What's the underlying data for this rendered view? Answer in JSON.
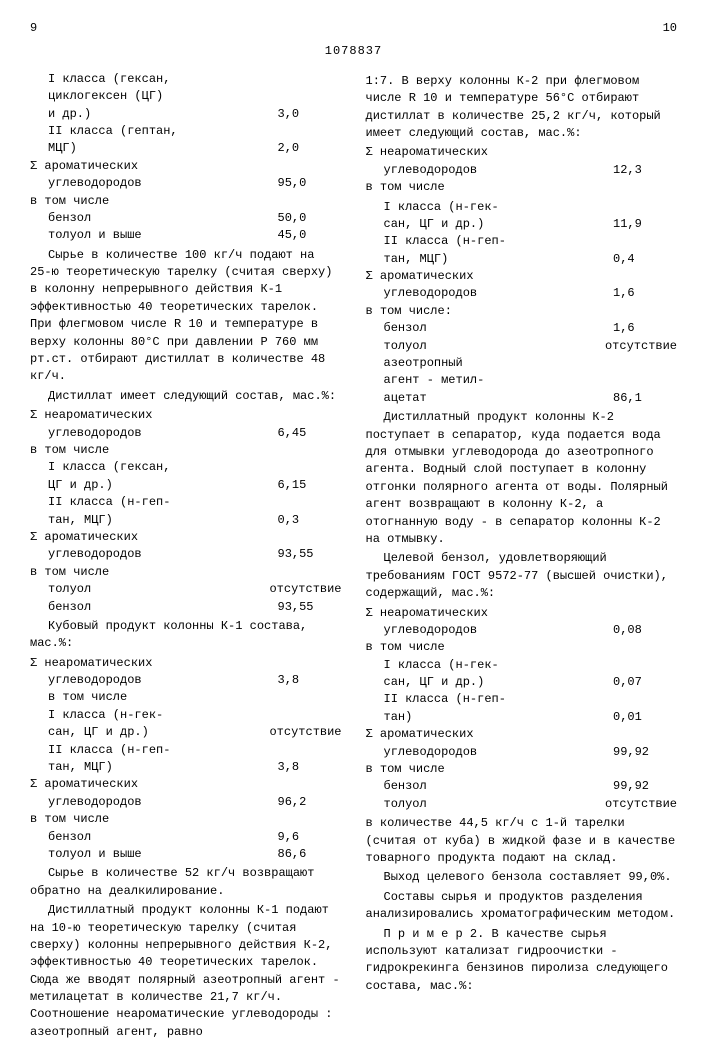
{
  "header": {
    "left_page": "9",
    "right_page": "10",
    "doc_number": "1078837"
  },
  "left": {
    "rows1": [
      {
        "lbl": "I класса (гексан,",
        "val": ""
      },
      {
        "lbl": "циклогексен (ЦГ)",
        "val": ""
      },
      {
        "lbl": "и др.)",
        "val": "3,0"
      },
      {
        "lbl": "II класса (гептан,",
        "val": ""
      },
      {
        "lbl": "МЦГ)",
        "val": "2,0"
      },
      {
        "lbl_np": "Σ ароматических",
        "val": ""
      },
      {
        "lbl": "углеводородов",
        "val": "95,0"
      },
      {
        "lbl_np": "в том числе",
        "val": ""
      },
      {
        "lbl": "бензол",
        "val": "50,0"
      },
      {
        "lbl": "толуол и выше",
        "val": "45,0"
      }
    ],
    "p1": "Сырье в количестве 100 кг/ч подают на 25-ю теоретическую тарелку (считая сверху) в колонну непрерывного действия К-1 эффективностью 40 теоретических тарелок. При флегмовом числе R 10 и температуре в верху колонны 80°С при давлении P 760 мм рт.ст. отбирают дистиллат в количестве 48 кг/ч.",
    "p2": "Дистиллат имеет следующий состав, мас.%:",
    "rows2": [
      {
        "lbl_np": "Σ неароматических",
        "val": ""
      },
      {
        "lbl": "углеводородов",
        "val": "6,45"
      },
      {
        "lbl_np": "в том числе",
        "val": ""
      },
      {
        "lbl": "I класса (гексан,",
        "val": ""
      },
      {
        "lbl": "ЦГ и др.)",
        "val": "6,15"
      },
      {
        "lbl": "II класса (н-геп-",
        "val": ""
      },
      {
        "lbl": "тан, МЦГ)",
        "val": "0,3"
      },
      {
        "lbl_np": "Σ ароматических",
        "val": ""
      },
      {
        "lbl": "углеводородов",
        "val": "93,55"
      },
      {
        "lbl_np": "в том числе",
        "val": ""
      },
      {
        "lbl": "толуол",
        "val": "отсутствие"
      },
      {
        "lbl": "бензол",
        "val": "93,55"
      }
    ],
    "p3": "Кубовый продукт колонны К-1 состава, мас.%:",
    "rows3": [
      {
        "lbl_np": "Σ неароматических",
        "val": ""
      },
      {
        "lbl": "углеводородов",
        "val": "3,8"
      },
      {
        "lbl": "в том числе",
        "val": ""
      },
      {
        "lbl": "I класса (н-гек-",
        "val": ""
      },
      {
        "lbl": "сан, ЦГ и др.)",
        "val": "отсутствие"
      },
      {
        "lbl": "II класса (н-геп-",
        "val": ""
      },
      {
        "lbl": "тан, МЦГ)",
        "val": "3,8"
      },
      {
        "lbl_np": "Σ ароматических",
        "val": ""
      },
      {
        "lbl": "углеводородов",
        "val": "96,2"
      },
      {
        "lbl_np": "в том числе",
        "val": ""
      },
      {
        "lbl": "бензол",
        "val": "9,6"
      },
      {
        "lbl": "толуол и выше",
        "val": "86,6"
      }
    ],
    "p4": "Сырье в количестве 52 кг/ч возвращают обратно на деалкилирование.",
    "p5": "Дистиллатный продукт колонны К-1 подают на 10-ю теоретическую тарелку (считая сверху) колонны непрерывного действия К-2, эффективностью 40 теоретических тарелок. Сюда же вводят полярный азеотропный агент - метилацетат в количестве 21,7 кг/ч. Соотношение неароматические углеводороды : азеотропный агент, равно"
  },
  "right": {
    "p1a": "1:7. В верху колонны К-2 при флегмовом числе R 10 и температуре 56°С отбирают дистиллат в количестве 25,2 кг/ч, который имеет следующий состав, мас.%:",
    "rows1": [
      {
        "lbl_np": "Σ неароматических",
        "val": ""
      },
      {
        "lbl": "углеводородов",
        "val": "12,3"
      },
      {
        "lbl_np": "в том числе",
        "val": ""
      }
    ],
    "rows1b": [
      {
        "lbl": "I класса (н-гек-",
        "val": ""
      },
      {
        "lbl": "сан, ЦГ и др.)",
        "val": "11,9"
      },
      {
        "lbl": "II класса (н-геп-",
        "val": ""
      },
      {
        "lbl": "тан, МЦГ)",
        "val": "0,4"
      },
      {
        "lbl_np": "Σ ароматических",
        "val": ""
      },
      {
        "lbl": "углеводородов",
        "val": "1,6"
      },
      {
        "lbl_np": "в том числе:",
        "val": ""
      },
      {
        "lbl": "бензол",
        "val": "1,6"
      },
      {
        "lbl": "толуол",
        "val": "отсутствие"
      },
      {
        "lbl": "азеотропный",
        "val": ""
      },
      {
        "lbl": "агент - метил-",
        "val": ""
      },
      {
        "lbl": "ацетат",
        "val": "86,1"
      }
    ],
    "p2": "Дистиллатный продукт колонны К-2 поступает в сепаратор, куда подается вода для отмывки углеводорода до азеотропного агента. Водный слой поступает в колонну отгонки полярного агента от воды. Полярный агент возвращают в колонну К-2, а отогнанную воду - в сепаратор колонны К-2 на отмывку.",
    "p3": "Целевой бензол, удовлетворяющий требованиям ГОСТ 9572-77 (высшей очистки), содержащий, мас.%:",
    "rows2": [
      {
        "lbl_np": "Σ неароматических",
        "val": ""
      },
      {
        "lbl": "углеводородов",
        "val": "0,08"
      },
      {
        "lbl_np": "в том числе",
        "val": ""
      },
      {
        "lbl": "I класса (н-гек-",
        "val": ""
      },
      {
        "lbl": "сан, ЦГ и др.)",
        "val": "0,07"
      },
      {
        "lbl": "II класса (н-геп-",
        "val": ""
      },
      {
        "lbl": "тан)",
        "val": "0,01"
      },
      {
        "lbl_np": "Σ ароматических",
        "val": ""
      },
      {
        "lbl": "углеводородов",
        "val": "99,92"
      },
      {
        "lbl_np": "в том числе",
        "val": ""
      },
      {
        "lbl": "бензол",
        "val": "99,92"
      },
      {
        "lbl": "толуол",
        "val": "отсутствие"
      }
    ],
    "p4": "в количестве 44,5 кг/ч с 1-й тарелки (считая от куба) в жидкой фазе и в качестве товарного продукта подают на склад.",
    "p5": "Выход целевого бензола составляет 99,0%.",
    "p6": "Составы сырья и продуктов разделения анализировались хроматографическим методом.",
    "p7": "П р и м е р  2. В качестве сырья используют катализат гидроочистки - гидрокрекинга бензинов пиролиза следующего состава, мас.%:"
  },
  "linenos_left": [
    "5",
    "10",
    "",
    "15",
    "20",
    "",
    "25",
    "30",
    "",
    "35",
    "40",
    "",
    "45",
    "50",
    "55"
  ],
  "linenos_right": [
    "",
    "5",
    "",
    "10",
    "",
    "15",
    "",
    "20",
    "",
    "25",
    "",
    "30",
    "",
    "35",
    "",
    "40",
    "",
    "45",
    "",
    "50",
    "",
    "55"
  ]
}
